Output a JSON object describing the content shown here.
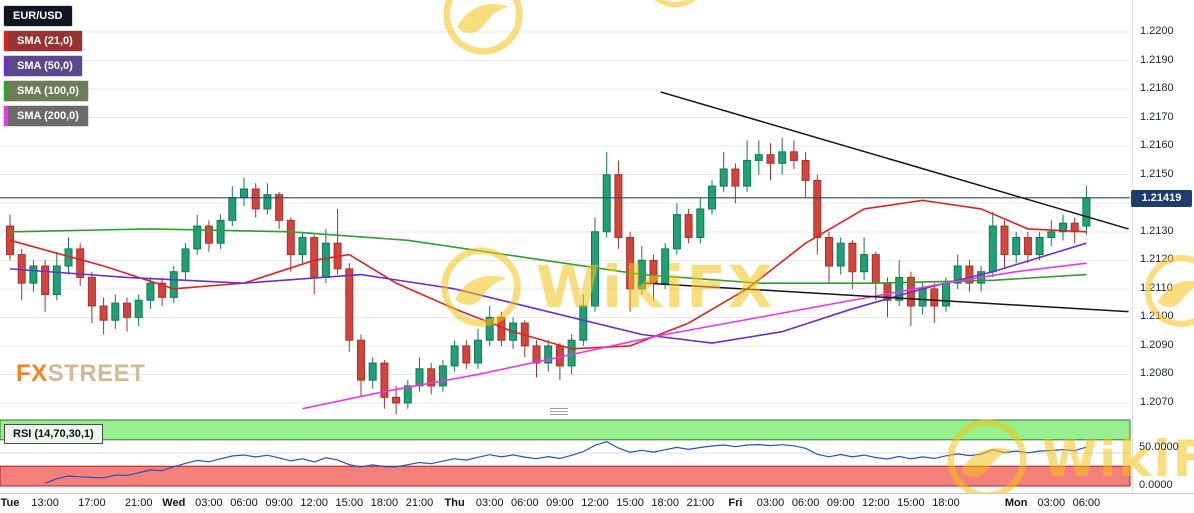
{
  "legend": {
    "symbol": "EUR/USD",
    "symbol_badge_color": "#10151f",
    "smas": [
      {
        "label": "SMA (21,0)",
        "badge": "#993333",
        "stripe": "#dd2222"
      },
      {
        "label": "SMA (50,0)",
        "badge": "#584a8c",
        "stripe": "#6a30c9"
      },
      {
        "label": "SMA (100,0)",
        "badge": "#6e7c55",
        "stripe": "#2f9e2f"
      },
      {
        "label": "SMA (200,0)",
        "badge": "#6b6b6b",
        "stripe": "#e838e8"
      }
    ]
  },
  "branding": {
    "watermark": "WikiFX",
    "fxstreet_fx": "FX",
    "fxstreet_street": "STREET"
  },
  "price_axis": {
    "labels": [
      "1.2200",
      "1.2190",
      "1.2180",
      "1.2170",
      "1.2160",
      "1.2150",
      "1.2140",
      "1.2130",
      "1.2120",
      "1.2110",
      "1.2100",
      "1.2090",
      "1.2080",
      "1.2070"
    ],
    "max": 1.22,
    "min": 1.207,
    "step": 0.001,
    "last_price": 1.21419,
    "last_price_label": "1.21419",
    "badge_color": "#1d3d6e"
  },
  "chart_data": {
    "type": "candlestick",
    "title": "EUR/USD hourly candlestick chart with SMA 21/50/100/200 overlays, descending trendlines and RSI sub-panel",
    "symbol": "EUR/USD",
    "interval": "1h",
    "ylim": [
      1.207,
      1.22
    ],
    "grid": "horizontal",
    "colors": {
      "up_fill": "#1fa076",
      "up_stroke": "#0f7a56",
      "down_fill": "#d2453c",
      "down_stroke": "#a8322c",
      "sma21": "#dd2222",
      "sma50": "#6a30c9",
      "sma100": "#2f9e2f",
      "sma200": "#e838e8",
      "trendline": "#141414",
      "hline": "#2b4a6f",
      "grid": "#e8e8e8",
      "rsi_line": "#2a52be",
      "rsi_band_high_fill": "#97ef8e",
      "rsi_band_high_stroke": "#2e7d32",
      "rsi_band_low_fill": "#f4807c",
      "rsi_band_low_stroke": "#b71c1c"
    },
    "hline": 1.21419,
    "trendlines": [
      {
        "points": [
          [
            55.6,
            1.2179
          ],
          [
            95.6,
            1.2131
          ]
        ]
      },
      {
        "points": [
          [
            54.3,
            1.2112
          ],
          [
            95.6,
            1.2102
          ]
        ]
      }
    ],
    "candles": [
      [
        1.2132,
        1.2136,
        1.212,
        1.2122
      ],
      [
        1.2122,
        1.2124,
        1.2106,
        1.2112
      ],
      [
        1.2112,
        1.212,
        1.2109,
        1.2118
      ],
      [
        1.2118,
        1.212,
        1.2102,
        1.2108
      ],
      [
        1.2108,
        1.2123,
        1.2106,
        1.2118
      ],
      [
        1.2118,
        1.2128,
        1.2115,
        1.2124
      ],
      [
        1.2124,
        1.2126,
        1.2111,
        1.2114
      ],
      [
        1.2114,
        1.2116,
        1.2098,
        1.2104
      ],
      [
        1.2104,
        1.2107,
        1.2094,
        1.2099
      ],
      [
        1.2099,
        1.2108,
        1.2096,
        1.2105
      ],
      [
        1.2105,
        1.2107,
        1.2095,
        1.21
      ],
      [
        1.21,
        1.2108,
        1.2097,
        1.2106
      ],
      [
        1.2106,
        1.2114,
        1.2103,
        1.2112
      ],
      [
        1.2112,
        1.2114,
        1.2104,
        1.2107
      ],
      [
        1.2107,
        1.2118,
        1.2105,
        1.2116
      ],
      [
        1.2116,
        1.2126,
        1.2113,
        1.2124
      ],
      [
        1.2124,
        1.2136,
        1.2122,
        1.2132
      ],
      [
        1.2132,
        1.2134,
        1.2123,
        1.2126
      ],
      [
        1.2126,
        1.2136,
        1.2124,
        1.2134
      ],
      [
        1.2134,
        1.2146,
        1.2132,
        1.2142
      ],
      [
        1.2142,
        1.2149,
        1.2139,
        1.2145
      ],
      [
        1.2145,
        1.2147,
        1.2135,
        1.2138
      ],
      [
        1.2138,
        1.2147,
        1.2136,
        1.2143
      ],
      [
        1.2143,
        1.2144,
        1.2131,
        1.2134
      ],
      [
        1.2134,
        1.2135,
        1.2116,
        1.2122
      ],
      [
        1.2122,
        1.213,
        1.2119,
        1.2128
      ],
      [
        1.2128,
        1.2129,
        1.2108,
        1.2114
      ],
      [
        1.2114,
        1.2131,
        1.2112,
        1.2126
      ],
      [
        1.2126,
        1.2138,
        1.2115,
        1.2117
      ],
      [
        1.2117,
        1.2119,
        1.2088,
        1.2092
      ],
      [
        1.2092,
        1.2094,
        1.2072,
        1.2078
      ],
      [
        1.2078,
        1.2086,
        1.2075,
        1.2084
      ],
      [
        1.2084,
        1.2085,
        1.2068,
        1.2072
      ],
      [
        1.2072,
        1.2076,
        1.2066,
        1.207
      ],
      [
        1.207,
        1.2078,
        1.2068,
        1.2076
      ],
      [
        1.2076,
        1.2086,
        1.2074,
        1.2082
      ],
      [
        1.2082,
        1.2084,
        1.2073,
        1.2076
      ],
      [
        1.2076,
        1.2085,
        1.2074,
        1.2083
      ],
      [
        1.2083,
        1.2092,
        1.2081,
        1.209
      ],
      [
        1.209,
        1.2092,
        1.2082,
        1.2084
      ],
      [
        1.2084,
        1.2096,
        1.2082,
        1.2092
      ],
      [
        1.2092,
        1.2104,
        1.209,
        1.21
      ],
      [
        1.21,
        1.2102,
        1.209,
        1.2092
      ],
      [
        1.2092,
        1.21,
        1.2089,
        1.2098
      ],
      [
        1.2098,
        1.2099,
        1.2086,
        1.209
      ],
      [
        1.209,
        1.2092,
        1.2079,
        1.2084
      ],
      [
        1.2084,
        1.2092,
        1.2081,
        1.209
      ],
      [
        1.209,
        1.2091,
        1.2078,
        1.2083
      ],
      [
        1.2083,
        1.2094,
        1.208,
        1.2092
      ],
      [
        1.2092,
        1.2108,
        1.209,
        1.2104
      ],
      [
        1.2104,
        1.2135,
        1.2102,
        1.213
      ],
      [
        1.213,
        1.2158,
        1.2128,
        1.215
      ],
      [
        1.215,
        1.2155,
        1.2124,
        1.2128
      ],
      [
        1.2128,
        1.213,
        1.2102,
        1.211
      ],
      [
        1.211,
        1.2125,
        1.2108,
        1.212
      ],
      [
        1.212,
        1.2122,
        1.2106,
        1.2112
      ],
      [
        1.2112,
        1.2126,
        1.211,
        1.2124
      ],
      [
        1.2124,
        1.214,
        1.2122,
        1.2136
      ],
      [
        1.2136,
        1.2138,
        1.2126,
        1.2128
      ],
      [
        1.2128,
        1.2142,
        1.2126,
        1.2138
      ],
      [
        1.2138,
        1.2148,
        1.2136,
        1.2146
      ],
      [
        1.2146,
        1.2158,
        1.2144,
        1.2152
      ],
      [
        1.2152,
        1.2154,
        1.214,
        1.2146
      ],
      [
        1.2146,
        1.2162,
        1.2144,
        1.2155
      ],
      [
        1.2155,
        1.2162,
        1.215,
        1.2157
      ],
      [
        1.2157,
        1.2161,
        1.2148,
        1.2154
      ],
      [
        1.2154,
        1.2163,
        1.215,
        1.2158
      ],
      [
        1.2158,
        1.2162,
        1.2152,
        1.2155
      ],
      [
        1.2155,
        1.2158,
        1.2142,
        1.2148
      ],
      [
        1.2148,
        1.215,
        1.2122,
        1.2128
      ],
      [
        1.2128,
        1.213,
        1.2112,
        1.2118
      ],
      [
        1.2118,
        1.2128,
        1.2115,
        1.2126
      ],
      [
        1.2126,
        1.2127,
        1.211,
        1.2116
      ],
      [
        1.2116,
        1.2128,
        1.2113,
        1.2122
      ],
      [
        1.2122,
        1.2123,
        1.2106,
        1.2112
      ],
      [
        1.2112,
        1.2114,
        1.21,
        1.2106
      ],
      [
        1.2106,
        1.212,
        1.2104,
        1.2114
      ],
      [
        1.2114,
        1.2116,
        1.2097,
        1.2104
      ],
      [
        1.2104,
        1.2112,
        1.2101,
        1.211
      ],
      [
        1.211,
        1.2112,
        1.2098,
        1.2104
      ],
      [
        1.2104,
        1.2114,
        1.2102,
        1.2112
      ],
      [
        1.2112,
        1.2122,
        1.211,
        1.2118
      ],
      [
        1.2118,
        1.212,
        1.2109,
        1.2112
      ],
      [
        1.2112,
        1.2118,
        1.2109,
        1.2116
      ],
      [
        1.2116,
        1.2137,
        1.2114,
        1.2132
      ],
      [
        1.2132,
        1.2134,
        1.2117,
        1.2122
      ],
      [
        1.2122,
        1.213,
        1.2119,
        1.2128
      ],
      [
        1.2128,
        1.213,
        1.2119,
        1.2122
      ],
      [
        1.2122,
        1.213,
        1.212,
        1.2128
      ],
      [
        1.2128,
        1.2134,
        1.2125,
        1.213
      ],
      [
        1.213,
        1.2136,
        1.2127,
        1.2133
      ],
      [
        1.2133,
        1.2135,
        1.2126,
        1.213
      ],
      [
        1.2132,
        1.2146,
        1.2129,
        1.21419
      ]
    ],
    "sma_series": [
      {
        "name": "SMA 21",
        "color": "#dd2222",
        "points": [
          [
            0,
            1.2127
          ],
          [
            8,
            1.2118
          ],
          [
            14,
            1.211
          ],
          [
            20,
            1.2112
          ],
          [
            26,
            1.212
          ],
          [
            29,
            1.2122
          ],
          [
            33,
            1.2112
          ],
          [
            38,
            1.2103
          ],
          [
            43,
            1.2095
          ],
          [
            48,
            1.2089
          ],
          [
            53,
            1.209
          ],
          [
            58,
            1.2098
          ],
          [
            63,
            1.211
          ],
          [
            68,
            1.2126
          ],
          [
            73,
            1.2138
          ],
          [
            78,
            1.2141
          ],
          [
            83,
            1.2138
          ],
          [
            87,
            1.2131
          ],
          [
            92,
            1.213
          ]
        ]
      },
      {
        "name": "SMA 50",
        "color": "#6a30c9",
        "points": [
          [
            0,
            1.2117
          ],
          [
            10,
            1.2114
          ],
          [
            20,
            1.2112
          ],
          [
            30,
            1.2115
          ],
          [
            38,
            1.211
          ],
          [
            46,
            1.2102
          ],
          [
            54,
            1.2094
          ],
          [
            60,
            1.2091
          ],
          [
            66,
            1.2095
          ],
          [
            72,
            1.2103
          ],
          [
            78,
            1.211
          ],
          [
            84,
            1.2116
          ],
          [
            88,
            1.2121
          ],
          [
            92,
            1.2126
          ]
        ]
      },
      {
        "name": "SMA 100",
        "color": "#2f9e2f",
        "points": [
          [
            0,
            1.213
          ],
          [
            12,
            1.2131
          ],
          [
            24,
            1.213
          ],
          [
            34,
            1.2127
          ],
          [
            44,
            1.2121
          ],
          [
            54,
            1.2115
          ],
          [
            64,
            1.2112
          ],
          [
            74,
            1.2112
          ],
          [
            84,
            1.2113
          ],
          [
            92,
            1.2115
          ]
        ]
      },
      {
        "name": "SMA 200",
        "color": "#e838e8",
        "points": [
          [
            25,
            1.2068
          ],
          [
            32,
            1.2074
          ],
          [
            40,
            1.208
          ],
          [
            48,
            1.2087
          ],
          [
            56,
            1.2094
          ],
          [
            64,
            1.21
          ],
          [
            72,
            1.2106
          ],
          [
            80,
            1.2112
          ],
          [
            86,
            1.2116
          ],
          [
            92,
            1.2119
          ]
        ]
      }
    ],
    "rsi": {
      "label": "RSI (14,70,30,1)",
      "period": 14,
      "overbought": 70,
      "oversold": 30,
      "range": [
        0,
        100
      ],
      "axis_labels": [
        "50.0000",
        "0.0000"
      ]
    },
    "x_labels": [
      {
        "i": 0,
        "text": "Tue",
        "day": true
      },
      {
        "i": 3,
        "text": "13:00"
      },
      {
        "i": 7,
        "text": "17:00"
      },
      {
        "i": 11,
        "text": "21:00"
      },
      {
        "i": 14,
        "text": "Wed",
        "day": true
      },
      {
        "i": 17,
        "text": "03:00"
      },
      {
        "i": 20,
        "text": "06:00"
      },
      {
        "i": 23,
        "text": "09:00"
      },
      {
        "i": 26,
        "text": "12:00"
      },
      {
        "i": 29,
        "text": "15:00"
      },
      {
        "i": 32,
        "text": "18:00"
      },
      {
        "i": 35,
        "text": "21:00"
      },
      {
        "i": 38,
        "text": "Thu",
        "day": true
      },
      {
        "i": 41,
        "text": "03:00"
      },
      {
        "i": 44,
        "text": "06:00"
      },
      {
        "i": 47,
        "text": "09:00"
      },
      {
        "i": 50,
        "text": "12:00"
      },
      {
        "i": 53,
        "text": "15:00"
      },
      {
        "i": 56,
        "text": "18:00"
      },
      {
        "i": 59,
        "text": "21:00"
      },
      {
        "i": 62,
        "text": "Fri",
        "day": true
      },
      {
        "i": 65,
        "text": "03:00"
      },
      {
        "i": 68,
        "text": "06:00"
      },
      {
        "i": 71,
        "text": "09:00"
      },
      {
        "i": 74,
        "text": "12:00"
      },
      {
        "i": 77,
        "text": "15:00"
      },
      {
        "i": 80,
        "text": "18:00"
      },
      {
        "i": 86,
        "text": "Mon",
        "day": true
      },
      {
        "i": 89,
        "text": "03:00"
      },
      {
        "i": 92,
        "text": "06:00"
      }
    ]
  }
}
